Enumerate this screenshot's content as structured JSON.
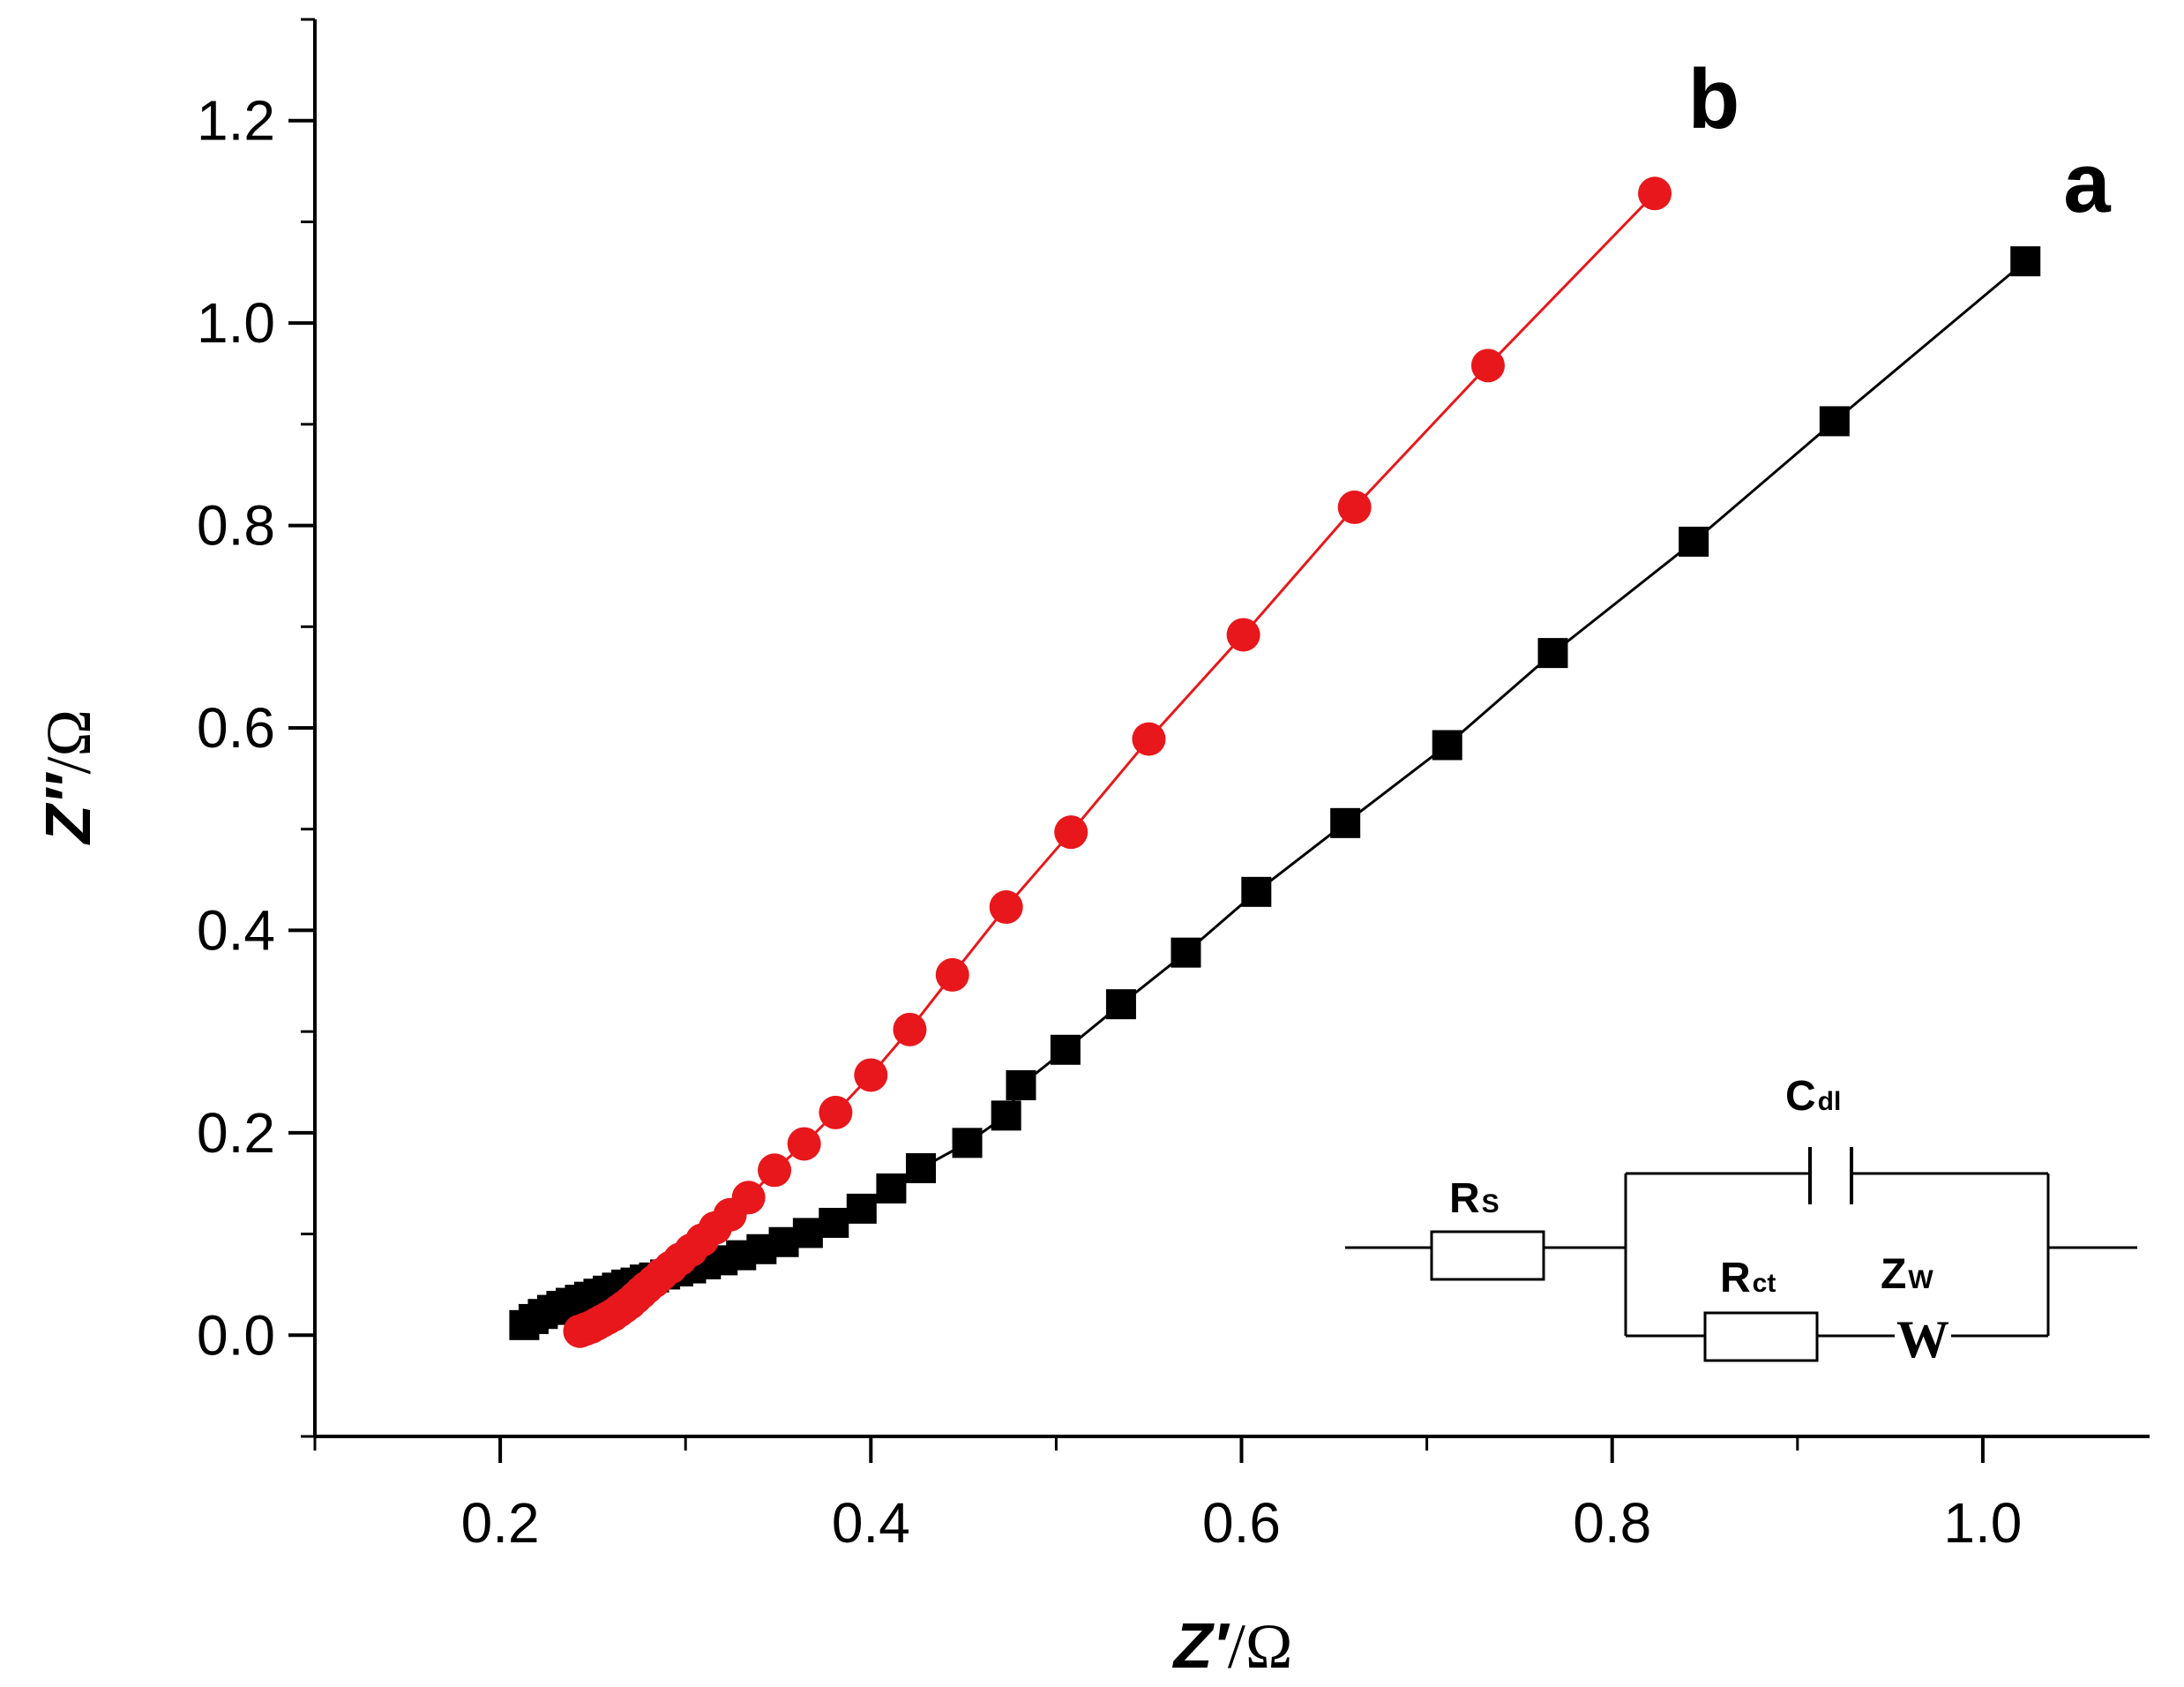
{
  "chart_data": {
    "type": "scatter",
    "title": "",
    "xlabel": "Z′",
    "xunit": "/Ω",
    "ylabel": "Z″",
    "yunit": "/Ω",
    "xlim": [
      0.1,
      1.09
    ],
    "ylim": [
      -0.1,
      1.3
    ],
    "xticks": [
      "0.2",
      "0.4",
      "0.6",
      "0.8",
      "1.0"
    ],
    "xtick_values": [
      0.2,
      0.4,
      0.6,
      0.8,
      1.0
    ],
    "yticks": [
      "0.0",
      "0.2",
      "0.4",
      "0.6",
      "0.8",
      "1.0",
      "1.2"
    ],
    "ytick_values": [
      0.0,
      0.2,
      0.4,
      0.6,
      0.8,
      1.0,
      1.2
    ],
    "grid": false,
    "series": [
      {
        "name": "a",
        "marker": "square",
        "color": "#000000",
        "points": [
          [
            0.213,
            0.01
          ],
          [
            0.218,
            0.016
          ],
          [
            0.223,
            0.021
          ],
          [
            0.228,
            0.025
          ],
          [
            0.233,
            0.029
          ],
          [
            0.238,
            0.032
          ],
          [
            0.243,
            0.035
          ],
          [
            0.248,
            0.038
          ],
          [
            0.253,
            0.041
          ],
          [
            0.258,
            0.044
          ],
          [
            0.263,
            0.047
          ],
          [
            0.268,
            0.05
          ],
          [
            0.273,
            0.052
          ],
          [
            0.278,
            0.055
          ],
          [
            0.283,
            0.057
          ],
          [
            0.289,
            0.06
          ],
          [
            0.296,
            0.063
          ],
          [
            0.303,
            0.066
          ],
          [
            0.311,
            0.07
          ],
          [
            0.32,
            0.074
          ],
          [
            0.33,
            0.079
          ],
          [
            0.341,
            0.085
          ],
          [
            0.353,
            0.092
          ],
          [
            0.366,
            0.101
          ],
          [
            0.38,
            0.111
          ],
          [
            0.395,
            0.125
          ],
          [
            0.411,
            0.145
          ],
          [
            0.427,
            0.165
          ],
          [
            0.452,
            0.19
          ],
          [
            0.473,
            0.217
          ],
          [
            0.481,
            0.247
          ],
          [
            0.505,
            0.282
          ],
          [
            0.535,
            0.327
          ],
          [
            0.57,
            0.378
          ],
          [
            0.608,
            0.438
          ],
          [
            0.656,
            0.506
          ],
          [
            0.711,
            0.583
          ],
          [
            0.768,
            0.674
          ],
          [
            0.844,
            0.784
          ],
          [
            0.92,
            0.903
          ],
          [
            1.023,
            1.061
          ]
        ]
      },
      {
        "name": "b",
        "marker": "circle",
        "color": "#e8171b",
        "points": [
          [
            0.243,
            0.004
          ],
          [
            0.246,
            0.006
          ],
          [
            0.249,
            0.008
          ],
          [
            0.252,
            0.011
          ],
          [
            0.255,
            0.014
          ],
          [
            0.258,
            0.017
          ],
          [
            0.261,
            0.02
          ],
          [
            0.264,
            0.024
          ],
          [
            0.267,
            0.028
          ],
          [
            0.27,
            0.032
          ],
          [
            0.273,
            0.037
          ],
          [
            0.276,
            0.042
          ],
          [
            0.279,
            0.047
          ],
          [
            0.283,
            0.053
          ],
          [
            0.287,
            0.06
          ],
          [
            0.292,
            0.067
          ],
          [
            0.297,
            0.075
          ],
          [
            0.303,
            0.084
          ],
          [
            0.309,
            0.094
          ],
          [
            0.316,
            0.106
          ],
          [
            0.324,
            0.119
          ],
          [
            0.334,
            0.136
          ],
          [
            0.348,
            0.163
          ],
          [
            0.364,
            0.189
          ],
          [
            0.381,
            0.22
          ],
          [
            0.4,
            0.257
          ],
          [
            0.421,
            0.302
          ],
          [
            0.444,
            0.356
          ],
          [
            0.473,
            0.423
          ],
          [
            0.508,
            0.497
          ],
          [
            0.55,
            0.589
          ],
          [
            0.601,
            0.692
          ],
          [
            0.661,
            0.818
          ],
          [
            0.733,
            0.958
          ],
          [
            0.823,
            1.128
          ]
        ]
      }
    ],
    "annotations": [
      "a",
      "b"
    ]
  },
  "inset": {
    "label": "equivalent circuit",
    "rs": {
      "main": "R",
      "sub": "S"
    },
    "cdl": {
      "main": "C",
      "sub": "dl"
    },
    "rct": {
      "main": "R",
      "sub": "ct"
    },
    "zw": {
      "main": "Z",
      "sub": "W"
    },
    "warburg_symbol": "W"
  }
}
